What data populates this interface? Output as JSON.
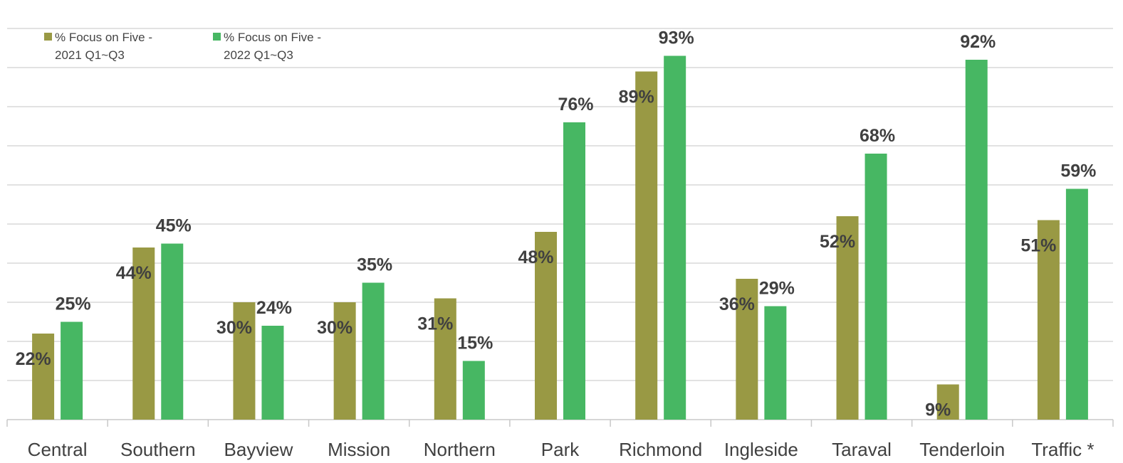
{
  "chart_data": {
    "type": "bar",
    "categories": [
      "Central",
      "Southern",
      "Bayview",
      "Mission",
      "Northern",
      "Park",
      "Richmond",
      "Ingleside",
      "Taraval",
      "Tenderloin",
      "Traffic *"
    ],
    "series": [
      {
        "name": "% Focus on Five - 2021 Q1~Q3",
        "color": "#999944",
        "values": [
          22,
          44,
          30,
          30,
          31,
          48,
          89,
          36,
          52,
          9,
          51
        ],
        "labels": [
          "22%",
          "44%",
          "30%",
          "30%",
          "31%",
          "48%",
          "89%",
          "36%",
          "52%",
          "9%",
          "51%"
        ]
      },
      {
        "name": "% Focus on Five - 2022 Q1~Q3",
        "color": "#47B763",
        "values": [
          25,
          45,
          24,
          35,
          15,
          76,
          93,
          29,
          68,
          92,
          59
        ],
        "labels": [
          "25%",
          "45%",
          "24%",
          "35%",
          "15%",
          "76%",
          "93%",
          "29%",
          "68%",
          "92%",
          "59%"
        ]
      }
    ],
    "ylim": [
      0,
      100
    ],
    "grid": true,
    "legend_position": "top-left",
    "title": "",
    "xlabel": "",
    "ylabel": ""
  }
}
